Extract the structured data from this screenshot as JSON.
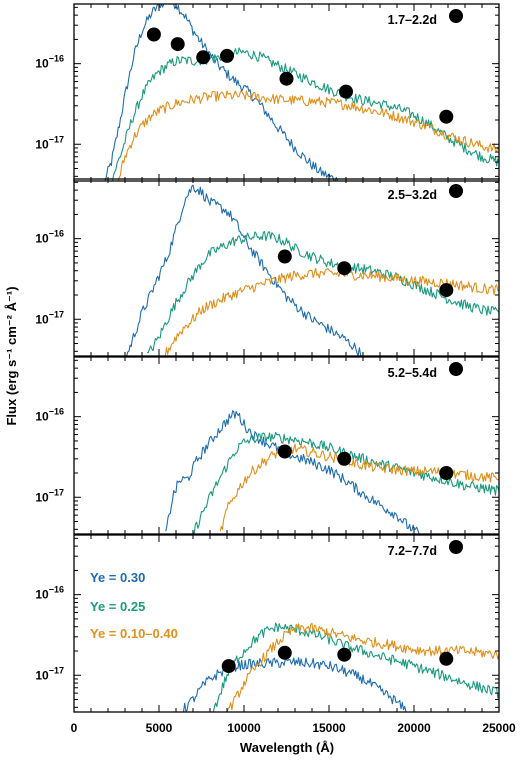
{
  "chart_data": {
    "type": "line",
    "xlabel": "Wavelength (Å)",
    "ylabel": "Flux (erg s⁻¹ cm⁻² Å⁻¹)",
    "xlim": [
      0,
      25000
    ],
    "x_ticks": [
      "0",
      "5000",
      "10000",
      "15000",
      "20000",
      "25000"
    ],
    "y_scale": "log",
    "ylim": [
      3.5e-18,
      5.5e-16
    ],
    "y_tick_values": [
      1e-17,
      1e-16
    ],
    "y_tick_label_base": "10",
    "y_tick_label_exponents": [
      "−17",
      "−16"
    ],
    "grid": false,
    "legend": {
      "placement": "left, bottom panel",
      "entries": [
        {
          "label": "Ye = 0.30",
          "color": "#1f6db0"
        },
        {
          "label": "Ye = 0.25",
          "color": "#1a9a7e"
        },
        {
          "label": "Ye = 0.10–0.40",
          "color": "#e0901c"
        }
      ]
    },
    "panels": [
      {
        "epoch": "1.7–2.2d",
        "points": {
          "x": [
            4700,
            6100,
            7600,
            9000,
            12500,
            16000,
            21900
          ],
          "y": [
            2.3e-16,
            1.75e-16,
            1.2e-16,
            1.25e-16,
            6.5e-17,
            4.5e-17,
            2.2e-17
          ]
        },
        "series": [
          {
            "name": "Ye = 0.30",
            "x": [
              1800,
              2200,
              2600,
              3000,
              3500,
              4000,
              4500,
              5000,
              5500,
              6000,
              6500,
              7000,
              7500,
              8000,
              8500,
              9000,
              9500,
              10000,
              10500,
              11000,
              11500,
              12000,
              12500,
              13000,
              13500,
              14000,
              14500,
              15000,
              15500
            ],
            "y": [
              3.5e-18,
              6e-18,
              1.5e-17,
              4e-17,
              1.2e-16,
              2.6e-16,
              4e-16,
              5.5e-16,
              6e-16,
              5.5e-16,
              4e-16,
              2.6e-16,
              1.8e-16,
              1.3e-16,
              9.5e-17,
              7.5e-17,
              6e-17,
              5e-17,
              4e-17,
              3e-17,
              2.2e-17,
              1.6e-17,
              1.2e-17,
              9e-18,
              7e-18,
              5.5e-18,
              4.5e-18,
              4e-18,
              3.5e-18
            ]
          },
          {
            "name": "Ye = 0.25",
            "x": [
              2200,
              2800,
              3400,
              4000,
              4500,
              5000,
              5500,
              6000,
              6500,
              7000,
              7500,
              8000,
              8500,
              9000,
              9500,
              10000,
              10500,
              11000,
              11500,
              12000,
              13000,
              14000,
              15000,
              16000,
              17000,
              18000,
              19000,
              20000,
              21000,
              22000,
              23000,
              24000,
              25000
            ],
            "y": [
              3.5e-18,
              8e-18,
              2e-17,
              4e-17,
              6e-17,
              8e-17,
              9.5e-17,
              1.08e-16,
              1.1e-16,
              1.08e-16,
              1.1e-16,
              1.15e-16,
              1.2e-16,
              1.28e-16,
              1.35e-16,
              1.38e-16,
              1.3e-16,
              1.2e-16,
              1.05e-16,
              9.5e-17,
              7.5e-17,
              6e-17,
              4.8e-17,
              4e-17,
              3.5e-17,
              3.2e-17,
              2.8e-17,
              2.3e-17,
              1.7e-17,
              1.2e-17,
              9e-18,
              7e-18,
              6e-18
            ]
          },
          {
            "name": "Ye = 0.10–0.40",
            "x": [
              2600,
              3000,
              3500,
              4000,
              4500,
              5000,
              5500,
              6000,
              7000,
              8000,
              9000,
              10000,
              11000,
              12000,
              13000,
              14000,
              15000,
              16000,
              17000,
              18000,
              19000,
              20000,
              21000,
              22000,
              23000,
              24000,
              25000
            ],
            "y": [
              3.5e-18,
              7e-18,
              1.2e-17,
              1.7e-17,
              2.2e-17,
              2.6e-17,
              2.9e-17,
              3.2e-17,
              3.6e-17,
              3.9e-17,
              4e-17,
              4e-17,
              3.8e-17,
              3.6e-17,
              3.5e-17,
              3.4e-17,
              3.3e-17,
              3.1e-17,
              2.8e-17,
              2.5e-17,
              2.2e-17,
              1.9e-17,
              1.6e-17,
              1.3e-17,
              1.1e-17,
              9.5e-18,
              8.5e-18
            ]
          }
        ]
      },
      {
        "epoch": "2.5–3.2d",
        "points": {
          "x": [
            12400,
            15900,
            21900
          ],
          "y": [
            6e-17,
            4.3e-17,
            2.3e-17
          ]
        },
        "series": [
          {
            "name": "Ye = 0.30",
            "x": [
              3100,
              3500,
              4000,
              4500,
              5000,
              5500,
              6000,
              6500,
              7000,
              7500,
              8000,
              8500,
              9000,
              9500,
              10000,
              10500,
              11000,
              11500,
              12000,
              12500,
              13000,
              14000,
              15000,
              16000,
              16500,
              17000
            ],
            "y": [
              3.5e-18,
              6e-18,
              1.2e-17,
              2e-17,
              3.5e-17,
              6e-17,
              1.3e-16,
              3e-16,
              4.5e-16,
              3.8e-16,
              2.8e-16,
              2.5e-16,
              2.2e-16,
              1.6e-16,
              1e-16,
              7e-17,
              5e-17,
              3.6e-17,
              2.6e-17,
              1.9e-17,
              1.5e-17,
              1e-17,
              7.5e-18,
              5.5e-18,
              4.5e-18,
              3.5e-18
            ]
          },
          {
            "name": "Ye = 0.25",
            "x": [
              4300,
              5000,
              5500,
              6000,
              6500,
              7000,
              7500,
              8000,
              8500,
              9000,
              9500,
              10000,
              10500,
              11000,
              11500,
              12000,
              12500,
              13000,
              14000,
              15000,
              16000,
              17000,
              18000,
              19000,
              20000,
              21000,
              22000,
              23000,
              24000,
              25000
            ],
            "y": [
              3.5e-18,
              6e-18,
              1e-17,
              1.6e-17,
              2.4e-17,
              3.5e-17,
              5e-17,
              6.5e-17,
              7.5e-17,
              8.5e-17,
              9.5e-17,
              1e-16,
              1.05e-16,
              1.08e-16,
              1.07e-16,
              1e-16,
              9e-17,
              7.5e-17,
              6e-17,
              5e-17,
              4.5e-17,
              4.2e-17,
              3.8e-17,
              3.3e-17,
              2.7e-17,
              2.2e-17,
              1.8e-17,
              1.5e-17,
              1.3e-17,
              1.2e-17
            ]
          },
          {
            "name": "Ye = 0.10–0.40",
            "x": [
              5300,
              6000,
              6500,
              7000,
              7500,
              8000,
              9000,
              10000,
              11000,
              12000,
              13000,
              14000,
              15000,
              16000,
              17000,
              18000,
              19000,
              20000,
              21000,
              22000,
              23000,
              24000,
              25000
            ],
            "y": [
              3.5e-18,
              6e-18,
              8e-18,
              1e-17,
              1.3e-17,
              1.5e-17,
              1.9e-17,
              2.3e-17,
              2.7e-17,
              3.1e-17,
              3.5e-17,
              3.7e-17,
              3.7e-17,
              3.6e-17,
              3.5e-17,
              3.4e-17,
              3.2e-17,
              3e-17,
              2.9e-17,
              2.8e-17,
              2.6e-17,
              2.4e-17,
              2.3e-17
            ]
          }
        ]
      },
      {
        "epoch": "5.2–5.4d",
        "points": {
          "x": [
            12400,
            15900,
            21900
          ],
          "y": [
            3.7e-17,
            3e-17,
            2e-17
          ]
        },
        "series": [
          {
            "name": "Ye = 0.30",
            "x": [
              5400,
              5800,
              6200,
              6700,
              7200,
              7700,
              8200,
              8700,
              9200,
              9600,
              10000,
              10500,
              11000,
              11500,
              12000,
              12500,
              13000,
              14000,
              15000,
              16000,
              17000,
              18000,
              19000,
              19600,
              20300
            ],
            "y": [
              3.5e-18,
              1e-17,
              1.6e-17,
              1.7e-17,
              2.8e-17,
              4e-17,
              5.5e-17,
              7.5e-17,
              1e-16,
              1.1e-16,
              8e-17,
              6e-17,
              5.2e-17,
              4.5e-17,
              4e-17,
              3.6e-17,
              3.2e-17,
              2.7e-17,
              2.2e-17,
              1.6e-17,
              1.1e-17,
              8e-18,
              6e-18,
              4.5e-18,
              3.5e-18
            ]
          },
          {
            "name": "Ye = 0.25",
            "x": [
              7000,
              7500,
              8000,
              8500,
              9000,
              9500,
              10000,
              10500,
              11000,
              11500,
              12000,
              13000,
              14000,
              15000,
              16000,
              17000,
              18000,
              19000,
              20000,
              21000,
              22000,
              23000,
              24000,
              25000
            ],
            "y": [
              3.5e-18,
              6e-18,
              1e-17,
              1.6e-17,
              2.5e-17,
              3.8e-17,
              4.8e-17,
              5.3e-17,
              5.5e-17,
              5.6e-17,
              5.5e-17,
              5.2e-17,
              4.7e-17,
              4.1e-17,
              3.5e-17,
              3e-17,
              2.6e-17,
              2.3e-17,
              2e-17,
              1.8e-17,
              1.6e-17,
              1.4e-17,
              1.3e-17,
              1.2e-17
            ]
          },
          {
            "name": "Ye = 0.10–0.40",
            "x": [
              8600,
              9000,
              9500,
              10000,
              10500,
              11000,
              11500,
              12000,
              12500,
              13000,
              14000,
              15000,
              16000,
              17000,
              18000,
              19000,
              20000,
              21000,
              22000,
              23000,
              24000,
              25000
            ],
            "y": [
              3.5e-18,
              7e-18,
              1.1e-17,
              1.6e-17,
              2.1e-17,
              2.6e-17,
              3.1e-17,
              3.6e-17,
              3.9e-17,
              4e-17,
              3.6e-17,
              3.2e-17,
              2.8e-17,
              2.5e-17,
              2.3e-17,
              2.2e-17,
              2.1e-17,
              2.1e-17,
              2e-17,
              1.9e-17,
              1.8e-17,
              1.7e-17
            ]
          }
        ]
      },
      {
        "epoch": "7.2–7.7d",
        "points": {
          "x": [
            9100,
            12400,
            15900,
            21900
          ],
          "y": [
            1.3e-17,
            1.9e-17,
            1.8e-17,
            1.6e-17
          ]
        },
        "series": [
          {
            "name": "Ye = 0.30",
            "x": [
              6300,
              7000,
              7500,
              8000,
              8500,
              9000,
              9500,
              10000,
              11000,
              12000,
              13000,
              14000,
              15000,
              16000,
              17000,
              18000,
              18800,
              19600
            ],
            "y": [
              3.5e-18,
              5e-18,
              7e-18,
              9e-18,
              1.05e-17,
              1.2e-17,
              1.3e-17,
              1.35e-17,
              1.4e-17,
              1.42e-17,
              1.45e-17,
              1.4e-17,
              1.3e-17,
              1.1e-17,
              9e-18,
              6.5e-18,
              5e-18,
              3.5e-18
            ]
          },
          {
            "name": "Ye = 0.25",
            "x": [
              8200,
              8600,
              9000,
              9500,
              10000,
              10500,
              11000,
              11500,
              12000,
              13000,
              14000,
              15000,
              16000,
              17000,
              18000,
              19000,
              20000,
              21000,
              22000,
              23000,
              24000,
              25000
            ],
            "y": [
              3.5e-18,
              6e-18,
              1e-17,
              1.5e-17,
              2e-17,
              2.6e-17,
              3.2e-17,
              3.7e-17,
              4e-17,
              3.7e-17,
              3.3e-17,
              2.8e-17,
              2.3e-17,
              2e-17,
              1.7e-17,
              1.5e-17,
              1.3e-17,
              1.1e-17,
              9.5e-18,
              8e-18,
              7e-18,
              6e-18
            ]
          },
          {
            "name": "Ye = 0.10–0.40",
            "x": [
              9000,
              9500,
              10000,
              10500,
              11000,
              11500,
              12000,
              12500,
              13000,
              13500,
              14000,
              15000,
              16000,
              17000,
              18000,
              19000,
              20000,
              21000,
              22000,
              23000,
              24000,
              25000
            ],
            "y": [
              3.5e-18,
              5e-18,
              8e-18,
              1.1e-17,
              1.5e-17,
              2e-17,
              2.6e-17,
              3.2e-17,
              3.7e-17,
              3.9e-17,
              3.8e-17,
              3.4e-17,
              3e-17,
              2.7e-17,
              2.5e-17,
              2.3e-17,
              2.1e-17,
              2e-17,
              2e-17,
              2e-17,
              1.9e-17,
              1.8e-17
            ]
          }
        ]
      }
    ]
  }
}
